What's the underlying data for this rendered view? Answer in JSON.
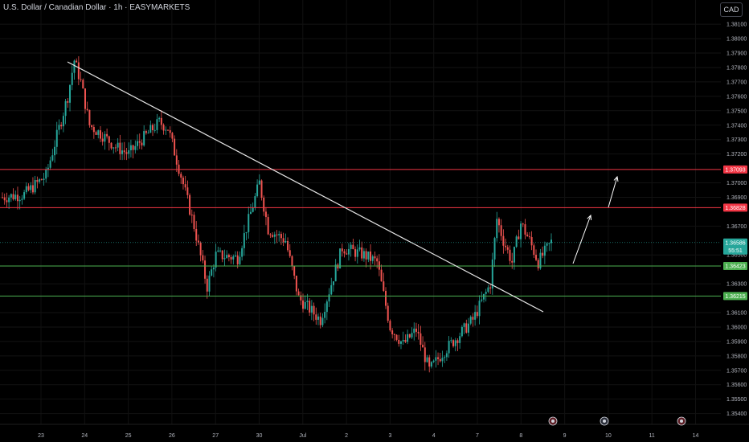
{
  "header": {
    "title": "U.S. Dollar / Canadian Dollar · 1h · EASYMARKETS",
    "currency": "CAD"
  },
  "chart_data": {
    "type": "candlestick",
    "ylim": [
      1.3537,
      1.3819
    ],
    "y_ticks": [
      "1.38100",
      "1.38000",
      "1.37900",
      "1.37800",
      "1.37700",
      "1.37600",
      "1.37500",
      "1.37400",
      "1.37300",
      "1.37200",
      "1.37000",
      "1.36900",
      "1.36700",
      "1.36500",
      "1.36300",
      "1.36100",
      "1.36000",
      "1.35900",
      "1.35800",
      "1.35700",
      "1.35600",
      "1.35500",
      "1.35400"
    ],
    "x_ticks": [
      "23",
      "24",
      "25",
      "26",
      "27",
      "30",
      "Jul",
      "2",
      "3",
      "4",
      "7",
      "8",
      "9",
      "10",
      "11",
      "14"
    ],
    "price_lines": [
      {
        "label": "1.37093",
        "value": 1.37093,
        "color": "#f23645"
      },
      {
        "label": "1.36828",
        "value": 1.36828,
        "color": "#f23645"
      },
      {
        "label": "1.36423",
        "value": 1.36423,
        "color": "#4caf50"
      },
      {
        "label": "1.36215",
        "value": 1.36215,
        "color": "#4caf50"
      }
    ],
    "current_price": {
      "label": "1.36586",
      "countdown": "55:51",
      "color": "#26a69a"
    },
    "anchors": [
      {
        "t": 0,
        "p": 1.369
      },
      {
        "t": 0.5,
        "p": 1.3692
      },
      {
        "t": 1,
        "p": 1.3705
      },
      {
        "t": 1.5,
        "p": 1.376
      },
      {
        "t": 1.65,
        "p": 1.3785
      },
      {
        "t": 1.8,
        "p": 1.377
      },
      {
        "t": 2.0,
        "p": 1.374
      },
      {
        "t": 2.3,
        "p": 1.3733
      },
      {
        "t": 2.6,
        "p": 1.3725
      },
      {
        "t": 2.9,
        "p": 1.372
      },
      {
        "t": 3.2,
        "p": 1.373
      },
      {
        "t": 3.6,
        "p": 1.3742
      },
      {
        "t": 3.8,
        "p": 1.3738
      },
      {
        "t": 4.1,
        "p": 1.3705
      },
      {
        "t": 4.4,
        "p": 1.367
      },
      {
        "t": 4.7,
        "p": 1.3628
      },
      {
        "t": 4.9,
        "p": 1.365
      },
      {
        "t": 5.4,
        "p": 1.3648
      },
      {
        "t": 5.9,
        "p": 1.37
      },
      {
        "t": 6.1,
        "p": 1.3668
      },
      {
        "t": 6.5,
        "p": 1.366
      },
      {
        "t": 6.8,
        "p": 1.362
      },
      {
        "t": 7.3,
        "p": 1.3605
      },
      {
        "t": 7.8,
        "p": 1.3655
      },
      {
        "t": 8.3,
        "p": 1.365
      },
      {
        "t": 8.6,
        "p": 1.3645
      },
      {
        "t": 8.9,
        "p": 1.36
      },
      {
        "t": 9.2,
        "p": 1.3588
      },
      {
        "t": 9.5,
        "p": 1.3598
      },
      {
        "t": 9.8,
        "p": 1.357
      },
      {
        "t": 10.1,
        "p": 1.3582
      },
      {
        "t": 10.5,
        "p": 1.3595
      },
      {
        "t": 10.8,
        "p": 1.3605
      },
      {
        "t": 11.2,
        "p": 1.363
      },
      {
        "t": 11.35,
        "p": 1.3675
      },
      {
        "t": 11.5,
        "p": 1.366
      },
      {
        "t": 11.7,
        "p": 1.3645
      },
      {
        "t": 11.9,
        "p": 1.3672
      },
      {
        "t": 12.1,
        "p": 1.366
      },
      {
        "t": 12.3,
        "p": 1.3645
      },
      {
        "t": 12.6,
        "p": 1.3659
      }
    ],
    "events": [
      "flag-icon",
      "flag-icon",
      "flag-icon"
    ]
  }
}
